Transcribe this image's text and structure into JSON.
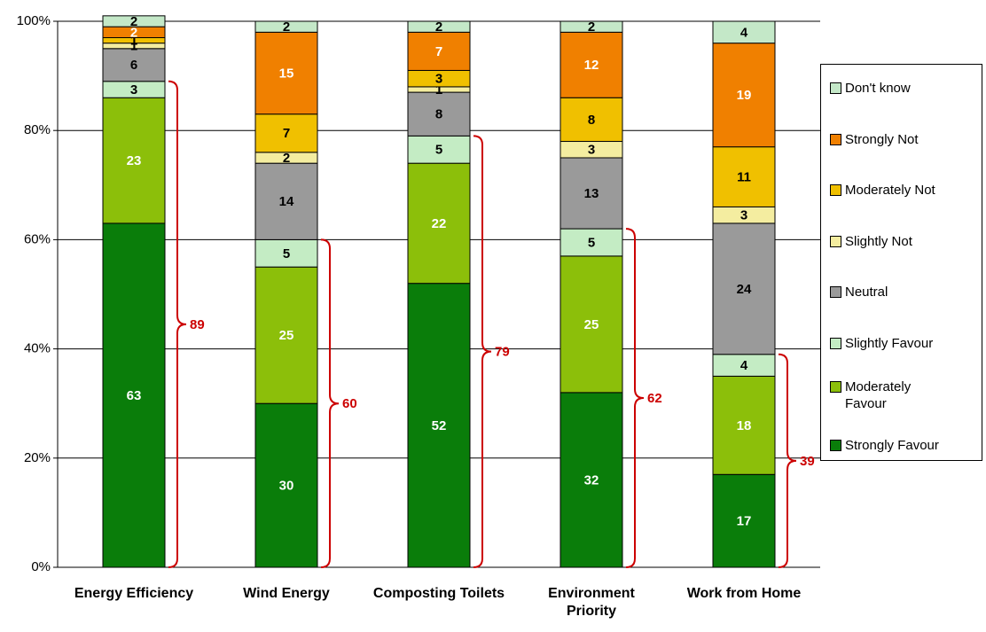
{
  "chart_data": {
    "type": "stacked_bar",
    "categories": [
      "Energy Efficiency",
      "Wind Energy",
      "Composting Toilets",
      "Environment Priority",
      "Work from Home"
    ],
    "series": [
      {
        "name": "Strongly Favour",
        "color": "#0a7d0a",
        "values": [
          63,
          30,
          52,
          32,
          17
        ]
      },
      {
        "name": "Moderately Favour",
        "color": "#8cbf0a",
        "values": [
          23,
          25,
          22,
          25,
          18
        ]
      },
      {
        "name": "Slightly Favour",
        "color": "#c4ecc4",
        "values": [
          3,
          5,
          5,
          5,
          4
        ]
      },
      {
        "name": "Neutral",
        "color": "#9a9a9a",
        "values": [
          6,
          14,
          8,
          13,
          24
        ]
      },
      {
        "name": "Slightly Not",
        "color": "#f4eda0",
        "values": [
          1,
          2,
          1,
          3,
          3
        ]
      },
      {
        "name": "Moderately Not",
        "color": "#f0c000",
        "values": [
          1,
          7,
          3,
          8,
          11
        ]
      },
      {
        "name": "Strongly Not",
        "color": "#f08000",
        "values": [
          2,
          15,
          7,
          12,
          19
        ]
      },
      {
        "name": "Don't know",
        "color": "#c4e8c8",
        "values": [
          2,
          2,
          2,
          2,
          4
        ]
      }
    ],
    "bracket_values": [
      89,
      60,
      79,
      62,
      39
    ],
    "bracket_color": "#cc0000",
    "ylim": [
      0,
      100
    ],
    "yticks": [
      {
        "value": 0,
        "label": "0%"
      },
      {
        "value": 20,
        "label": "20%"
      },
      {
        "value": 40,
        "label": "40%"
      },
      {
        "value": 60,
        "label": "60%"
      },
      {
        "value": 80,
        "label": "80%"
      },
      {
        "value": 100,
        "label": "100%"
      }
    ],
    "grid": true
  }
}
